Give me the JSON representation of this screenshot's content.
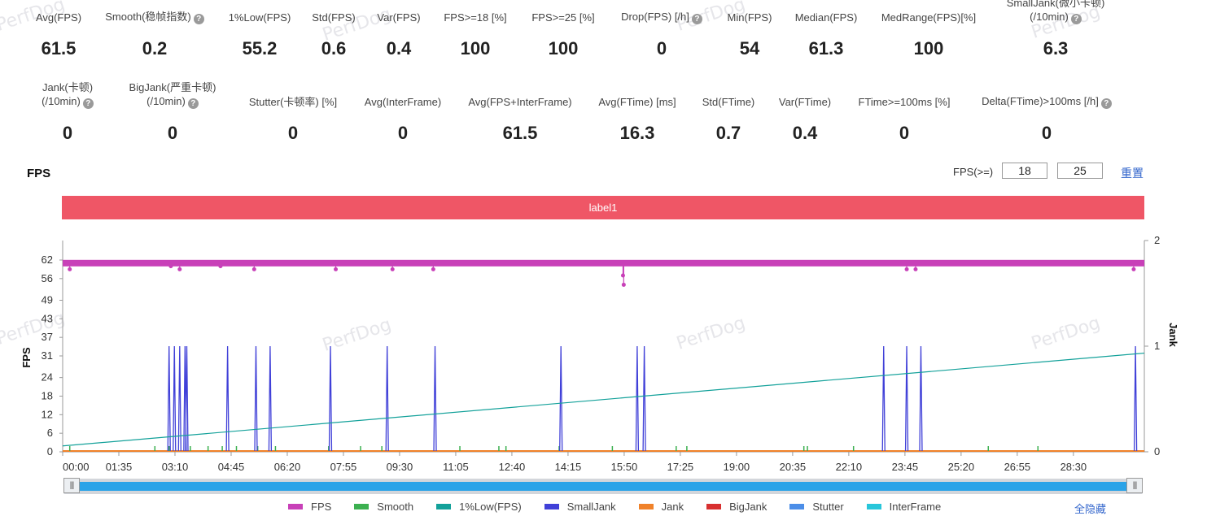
{
  "watermark": "PerfDog",
  "metrics_row1": [
    {
      "label": "Avg(FPS)",
      "value": "61.5",
      "help": false
    },
    {
      "label": "Smooth(稳帧指数)",
      "value": "0.2",
      "help": true
    },
    {
      "label": "1%Low(FPS)",
      "value": "55.2",
      "help": false
    },
    {
      "label": "Std(FPS)",
      "value": "0.6",
      "help": false
    },
    {
      "label": "Var(FPS)",
      "value": "0.4",
      "help": false
    },
    {
      "label": "FPS>=18 [%]",
      "value": "100",
      "help": false
    },
    {
      "label": "FPS>=25 [%]",
      "value": "100",
      "help": false
    },
    {
      "label": "Drop(FPS) [/h]",
      "value": "0",
      "help": true
    },
    {
      "label": "Min(FPS)",
      "value": "54",
      "help": false
    },
    {
      "label": "Median(FPS)",
      "value": "61.3",
      "help": false
    },
    {
      "label": "MedRange(FPS)[%]",
      "value": "100",
      "help": false
    },
    {
      "label": "SmallJank(微小卡顿)\n(/10min)",
      "value": "6.3",
      "help": true
    }
  ],
  "metrics_row2": [
    {
      "label": "Jank(卡顿)\n(/10min)",
      "value": "0",
      "help": true
    },
    {
      "label": "BigJank(严重卡顿)\n(/10min)",
      "value": "0",
      "help": true
    },
    {
      "label": "Stutter(卡顿率) [%]",
      "value": "0",
      "help": false
    },
    {
      "label": "Avg(InterFrame)",
      "value": "0",
      "help": false
    },
    {
      "label": "Avg(FPS+InterFrame)",
      "value": "61.5",
      "help": false
    },
    {
      "label": "Avg(FTime) [ms]",
      "value": "16.3",
      "help": false
    },
    {
      "label": "Std(FTime)",
      "value": "0.7",
      "help": false
    },
    {
      "label": "Var(FTime)",
      "value": "0.4",
      "help": false
    },
    {
      "label": "FTime>=100ms [%]",
      "value": "0",
      "help": false
    },
    {
      "label": "Delta(FTime)>100ms [/h]",
      "value": "0",
      "help": true
    }
  ],
  "section_title": "FPS",
  "threshold": {
    "label": "FPS(>=)",
    "value1": "18",
    "value2": "25",
    "reset_label": "重置"
  },
  "label_bar": "label1",
  "legend": [
    {
      "name": "FPS",
      "color": "#c840b8"
    },
    {
      "name": "Smooth",
      "color": "#3cb050"
    },
    {
      "name": "1%Low(FPS)",
      "color": "#13a19a"
    },
    {
      "name": "SmallJank",
      "color": "#4040d8"
    },
    {
      "name": "Jank",
      "color": "#f0822a"
    },
    {
      "name": "BigJank",
      "color": "#d83030"
    },
    {
      "name": "Stutter",
      "color": "#4c8ee8"
    },
    {
      "name": "InterFrame",
      "color": "#28c6da"
    }
  ],
  "hide_all_label": "全隐藏",
  "chart_data": {
    "type": "line",
    "ylabel": "FPS",
    "y2label": "Jank",
    "yticks": [
      "0",
      "6",
      "12",
      "18",
      "24",
      "31",
      "37",
      "43",
      "49",
      "56",
      "62"
    ],
    "y2ticks": [
      "0",
      "1",
      "2"
    ],
    "xticks": [
      "00:00",
      "01:35",
      "03:10",
      "04:45",
      "06:20",
      "07:55",
      "09:30",
      "11:05",
      "12:40",
      "14:15",
      "15:50",
      "17:25",
      "19:00",
      "20:35",
      "22:10",
      "23:45",
      "25:20",
      "26:55",
      "28:30"
    ],
    "ylim": [
      0,
      62
    ],
    "y2lim": [
      0,
      2
    ],
    "xlim_minutes": [
      0,
      30.5
    ],
    "series": [
      {
        "name": "FPS",
        "baseline": 61,
        "dips": [
          [
            0.2,
            59
          ],
          [
            3.05,
            60
          ],
          [
            3.3,
            59
          ],
          [
            4.45,
            60
          ],
          [
            5.4,
            59
          ],
          [
            7.7,
            59
          ],
          [
            9.3,
            59
          ],
          [
            10.45,
            59
          ],
          [
            15.8,
            57
          ],
          [
            15.82,
            54
          ],
          [
            23.8,
            59
          ],
          [
            24.05,
            59
          ],
          [
            30.2,
            59
          ]
        ]
      },
      {
        "name": "1%Low(FPS)",
        "from": 1.9,
        "to": 31.9
      },
      {
        "name": "SmallJank",
        "events_minutes": [
          3.0,
          3.15,
          3.3,
          3.45,
          3.5,
          4.65,
          5.45,
          5.85,
          7.55,
          9.15,
          10.5,
          14.05,
          16.2,
          16.4,
          23.15,
          23.8,
          24.2,
          30.25
        ],
        "value": 1
      },
      {
        "name": "Smooth",
        "events_minutes": [
          0.2,
          2.6,
          3.0,
          3.6,
          4.1,
          4.5,
          4.9,
          5.5,
          6.0,
          7.5,
          8.4,
          9.0,
          11.2,
          12.3,
          12.5,
          14.0,
          15.5,
          17.3,
          17.6,
          20.9,
          21.0,
          22.3,
          26.1,
          27.5
        ],
        "value": 0.05
      },
      {
        "name": "Jank",
        "values": "all 0"
      }
    ]
  }
}
